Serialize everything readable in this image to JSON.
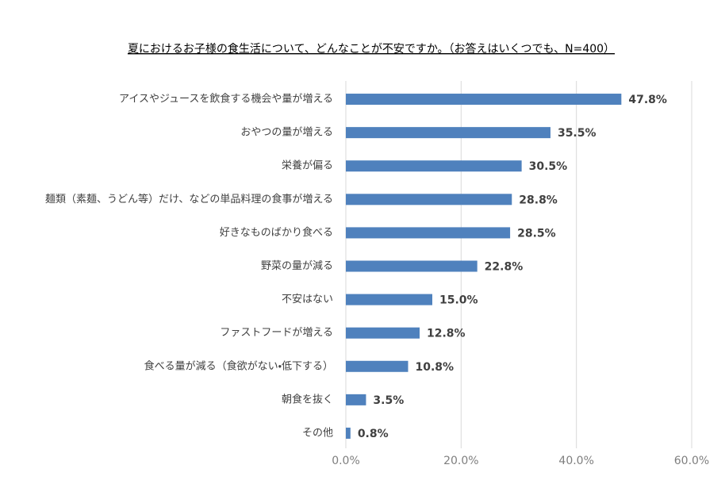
{
  "chart_data": {
    "type": "bar",
    "orientation": "horizontal",
    "title": "夏におけるお子様の食生活について、どんなことが不安ですか。（お答えはいくつでも、N=400）",
    "categories": [
      "アイスやジュースを飲食する機会や量が増える",
      "おやつの量が増える",
      "栄養が偏る",
      "麺類（素麺、うどん等）だけ、などの単品料理の食事が増える",
      "好きなものばかり食べる",
      "野菜の量が減る",
      "不安はない",
      "ファストフードが増える",
      "食べる量が減る（食欲がない・低下する）",
      "朝食を抜く",
      "その他"
    ],
    "values": [
      47.8,
      35.5,
      30.5,
      28.8,
      28.5,
      22.8,
      15.0,
      12.8,
      10.8,
      3.5,
      0.8
    ],
    "value_labels": [
      "47.8%",
      "35.5%",
      "30.5%",
      "28.8%",
      "28.5%",
      "22.8%",
      "15.0%",
      "12.8%",
      "10.8%",
      "3.5%",
      "0.8%"
    ],
    "color": "#4f81bd",
    "xlim": [
      0,
      60
    ],
    "xticks": [
      {
        "value": 0,
        "label": "0.0%"
      },
      {
        "value": 20,
        "label": "20.0%"
      },
      {
        "value": 40,
        "label": "40.0%"
      },
      {
        "value": 60,
        "label": "60.0%"
      }
    ],
    "grid": true
  }
}
